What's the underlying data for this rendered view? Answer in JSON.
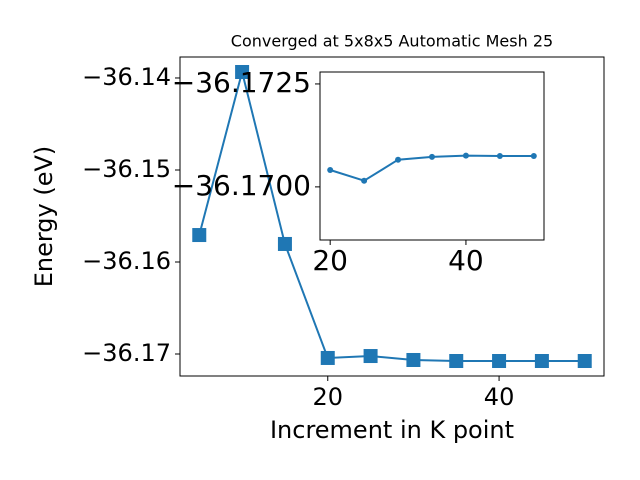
{
  "chart_data": [
    {
      "type": "line",
      "title": "Converged at 5x8x5 Automatic Mesh 25",
      "x_label": "Increment in K point",
      "y_label": "Energy (eV)",
      "marker": "square",
      "color": "#1f77b4",
      "x": [
        5,
        10,
        15,
        20,
        25,
        30,
        35,
        40,
        45,
        50
      ],
      "values": [
        -36.15707,
        -36.13935,
        -36.15804,
        -36.17043,
        -36.17022,
        -36.17065,
        -36.17076,
        -36.17076,
        -36.17076,
        -36.17076
      ],
      "xlim": [
        2.75,
        52.25
      ],
      "ylim": [
        -36.17239,
        -36.13772
      ],
      "xticks": [
        20,
        40
      ],
      "yticks": [
        {
          "value": -36.14,
          "label": "−36.14"
        },
        {
          "value": -36.15,
          "label": "−36.15"
        },
        {
          "value": -36.16,
          "label": "−36.16"
        },
        {
          "value": -36.17,
          "label": "−36.17"
        }
      ]
    },
    {
      "type": "line",
      "marker": "circle",
      "color": "#1f77b4",
      "y_inverted": true,
      "x": [
        20,
        25,
        30,
        35,
        40,
        45,
        50
      ],
      "values": [
        -36.17041,
        -36.17015,
        -36.17066,
        -36.17073,
        -36.17076,
        -36.17075,
        -36.17075
      ],
      "xlim": [
        18.5,
        51.5
      ],
      "ylim": [
        -36.16871,
        -36.17279
      ],
      "xticks": [
        20,
        40
      ],
      "yticks": [
        {
          "value": -36.1725,
          "label": "−36.1725"
        },
        {
          "value": -36.17,
          "label": "−36.1700"
        }
      ]
    }
  ]
}
